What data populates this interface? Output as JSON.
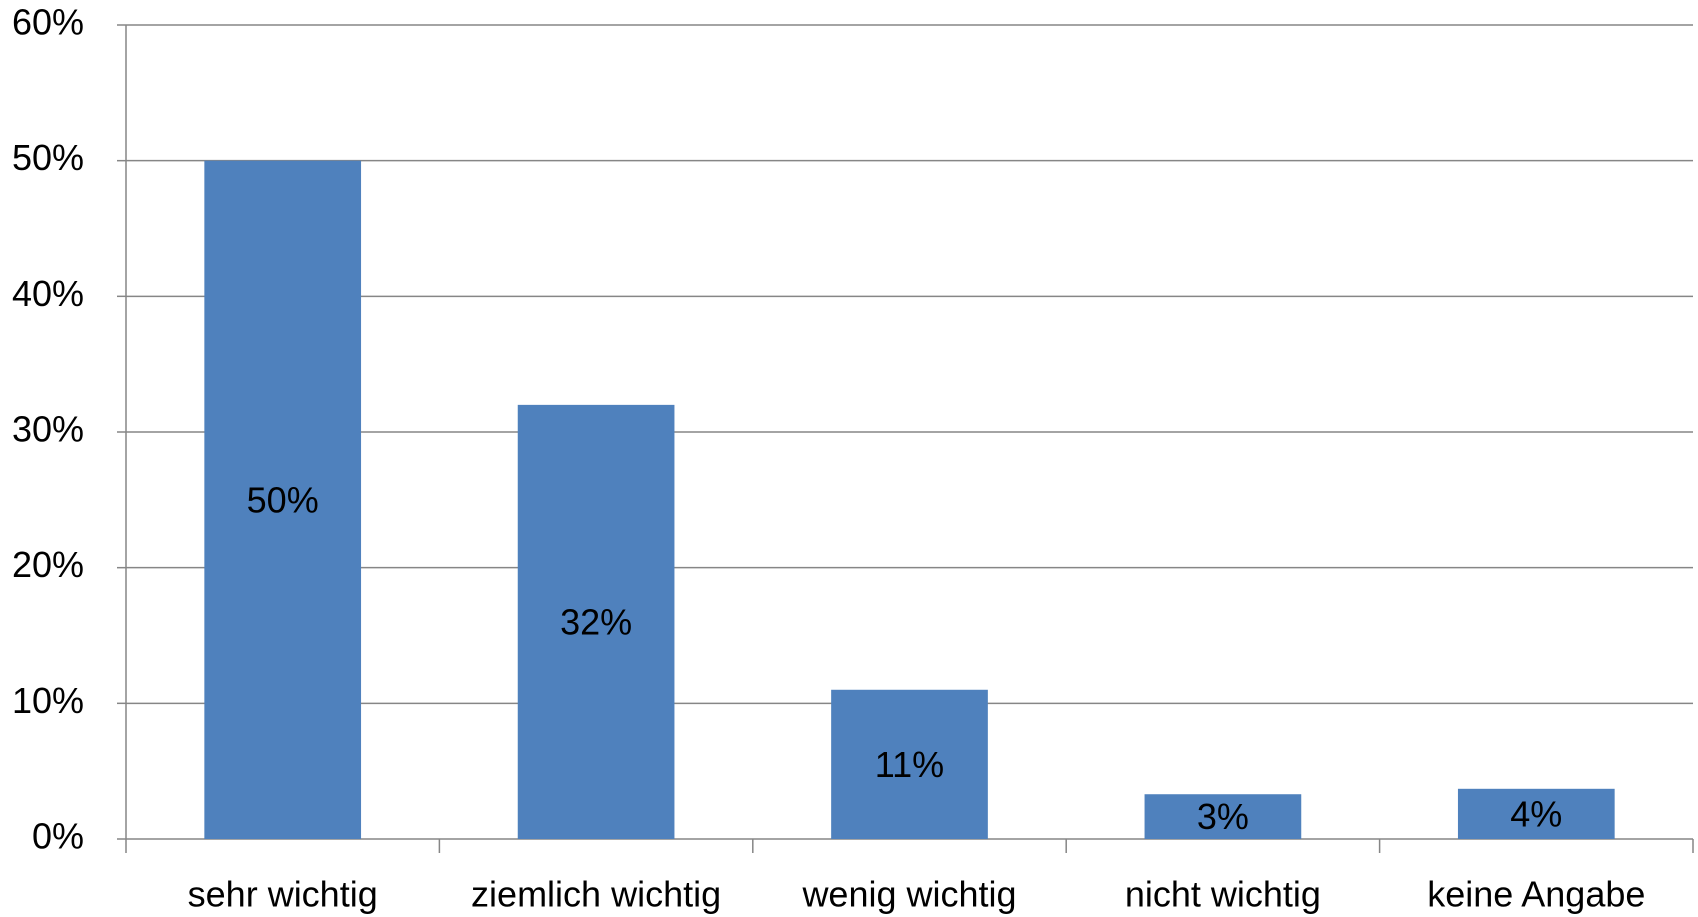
{
  "chart_data": {
    "type": "bar",
    "categories": [
      "sehr wichtig",
      "ziemlich wichtig",
      "wenig wichtig",
      "nicht wichtig",
      "keine Angabe"
    ],
    "values": [
      50,
      32,
      11,
      3.3,
      3.7
    ],
    "value_labels": [
      "50%",
      "32%",
      "11%",
      "3%",
      "4%"
    ],
    "color": "#4f81bd",
    "ylim": [
      0,
      60
    ],
    "yticks": [
      {
        "value": 0,
        "label": "0%"
      },
      {
        "value": 10,
        "label": "10%"
      },
      {
        "value": 20,
        "label": "20%"
      },
      {
        "value": 30,
        "label": "30%"
      },
      {
        "value": 40,
        "label": "40%"
      },
      {
        "value": 50,
        "label": "50%"
      },
      {
        "value": 60,
        "label": "60%"
      }
    ],
    "grid": true
  }
}
